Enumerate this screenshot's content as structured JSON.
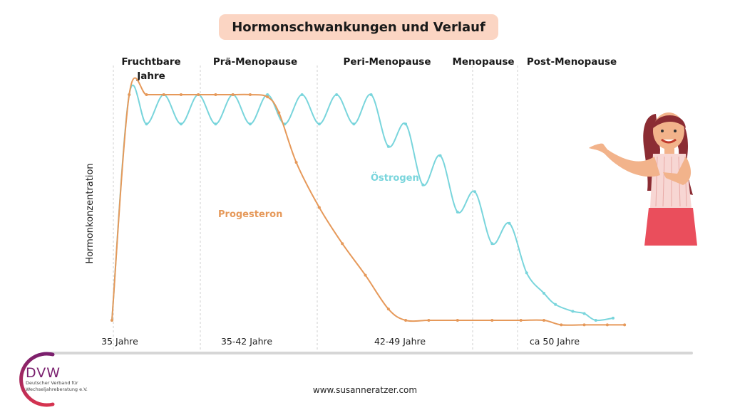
{
  "title": "Hormonschwankungen und Verlauf",
  "phases": [
    {
      "label": "Fruchtbare Jahre",
      "lines": [
        "Fruchtbare",
        "Jahre"
      ]
    },
    {
      "label": "Prä-Menopause",
      "lines": [
        "Prä-Menopause"
      ]
    },
    {
      "label": "Peri-Menopause",
      "lines": [
        "Peri-Menopause"
      ]
    },
    {
      "label": "Menopause",
      "lines": [
        "Menopause"
      ]
    },
    {
      "label": "Post-Menopause",
      "lines": [
        "Post-Menopause"
      ]
    }
  ],
  "age_labels": [
    "35 Jahre",
    "35-42 Jahre",
    "42-49 Jahre",
    "ca 50 Jahre"
  ],
  "logo": {
    "abbreviation": "DVW",
    "line1": "Deutscher Verband für",
    "line2": "Wechseljahreberatung e.V."
  },
  "website": "www.susanneratzer.com",
  "colors": {
    "oestrogen": "#79d5dc",
    "progesteron": "#e6995a",
    "title_bg": "#fbd5c3",
    "axis": "#d6d6d6",
    "logo_purple": "#7a1f6e",
    "logo_red": "#d6334f"
  },
  "chart_data": {
    "type": "line",
    "title": "Hormonschwankungen und Verlauf",
    "xlabel": "",
    "ylabel": "Hormonkonzentration",
    "xlim": [
      0,
      100
    ],
    "ylim": [
      0,
      100
    ],
    "grid": false,
    "legend": "inline labels",
    "axis_labels_x": [
      "35 Jahre",
      "35-42 Jahre",
      "42-49 Jahre",
      "ca 50 Jahre"
    ],
    "series": [
      {
        "name": "Östrogen",
        "color": "#79d5dc",
        "points": [
          [
            0,
            0
          ],
          [
            3,
            100
          ],
          [
            6,
            87
          ],
          [
            9,
            100
          ],
          [
            12,
            87
          ],
          [
            15,
            100
          ],
          [
            18,
            87
          ],
          [
            21,
            100
          ],
          [
            24,
            87
          ],
          [
            27,
            100
          ],
          [
            30,
            87
          ],
          [
            33,
            100
          ],
          [
            36,
            87
          ],
          [
            39,
            100
          ],
          [
            42,
            87
          ],
          [
            45,
            100
          ],
          [
            48,
            77
          ],
          [
            51,
            87
          ],
          [
            54,
            60
          ],
          [
            57,
            73
          ],
          [
            60,
            48
          ],
          [
            63,
            57
          ],
          [
            66,
            34
          ],
          [
            69,
            43
          ],
          [
            72,
            21
          ],
          [
            75,
            12
          ],
          [
            77,
            7
          ],
          [
            80,
            4
          ],
          [
            82,
            3
          ],
          [
            84,
            0
          ],
          [
            87,
            1
          ]
        ]
      },
      {
        "name": "Progesteron",
        "color": "#e6995a",
        "points": [
          [
            0,
            0
          ],
          [
            3,
            100
          ],
          [
            6,
            100
          ],
          [
            9,
            100
          ],
          [
            12,
            100
          ],
          [
            15,
            100
          ],
          [
            18,
            100
          ],
          [
            21,
            100
          ],
          [
            24,
            100
          ],
          [
            27,
            99
          ],
          [
            29,
            92
          ],
          [
            32,
            70
          ],
          [
            36,
            50
          ],
          [
            40,
            34
          ],
          [
            44,
            20
          ],
          [
            48,
            5
          ],
          [
            51,
            0
          ],
          [
            55,
            0
          ],
          [
            60,
            0
          ],
          [
            66,
            0
          ],
          [
            71,
            0
          ],
          [
            75,
            0
          ],
          [
            78,
            -2
          ],
          [
            82,
            -2
          ],
          [
            86,
            -2
          ],
          [
            89,
            -2
          ]
        ]
      }
    ]
  }
}
